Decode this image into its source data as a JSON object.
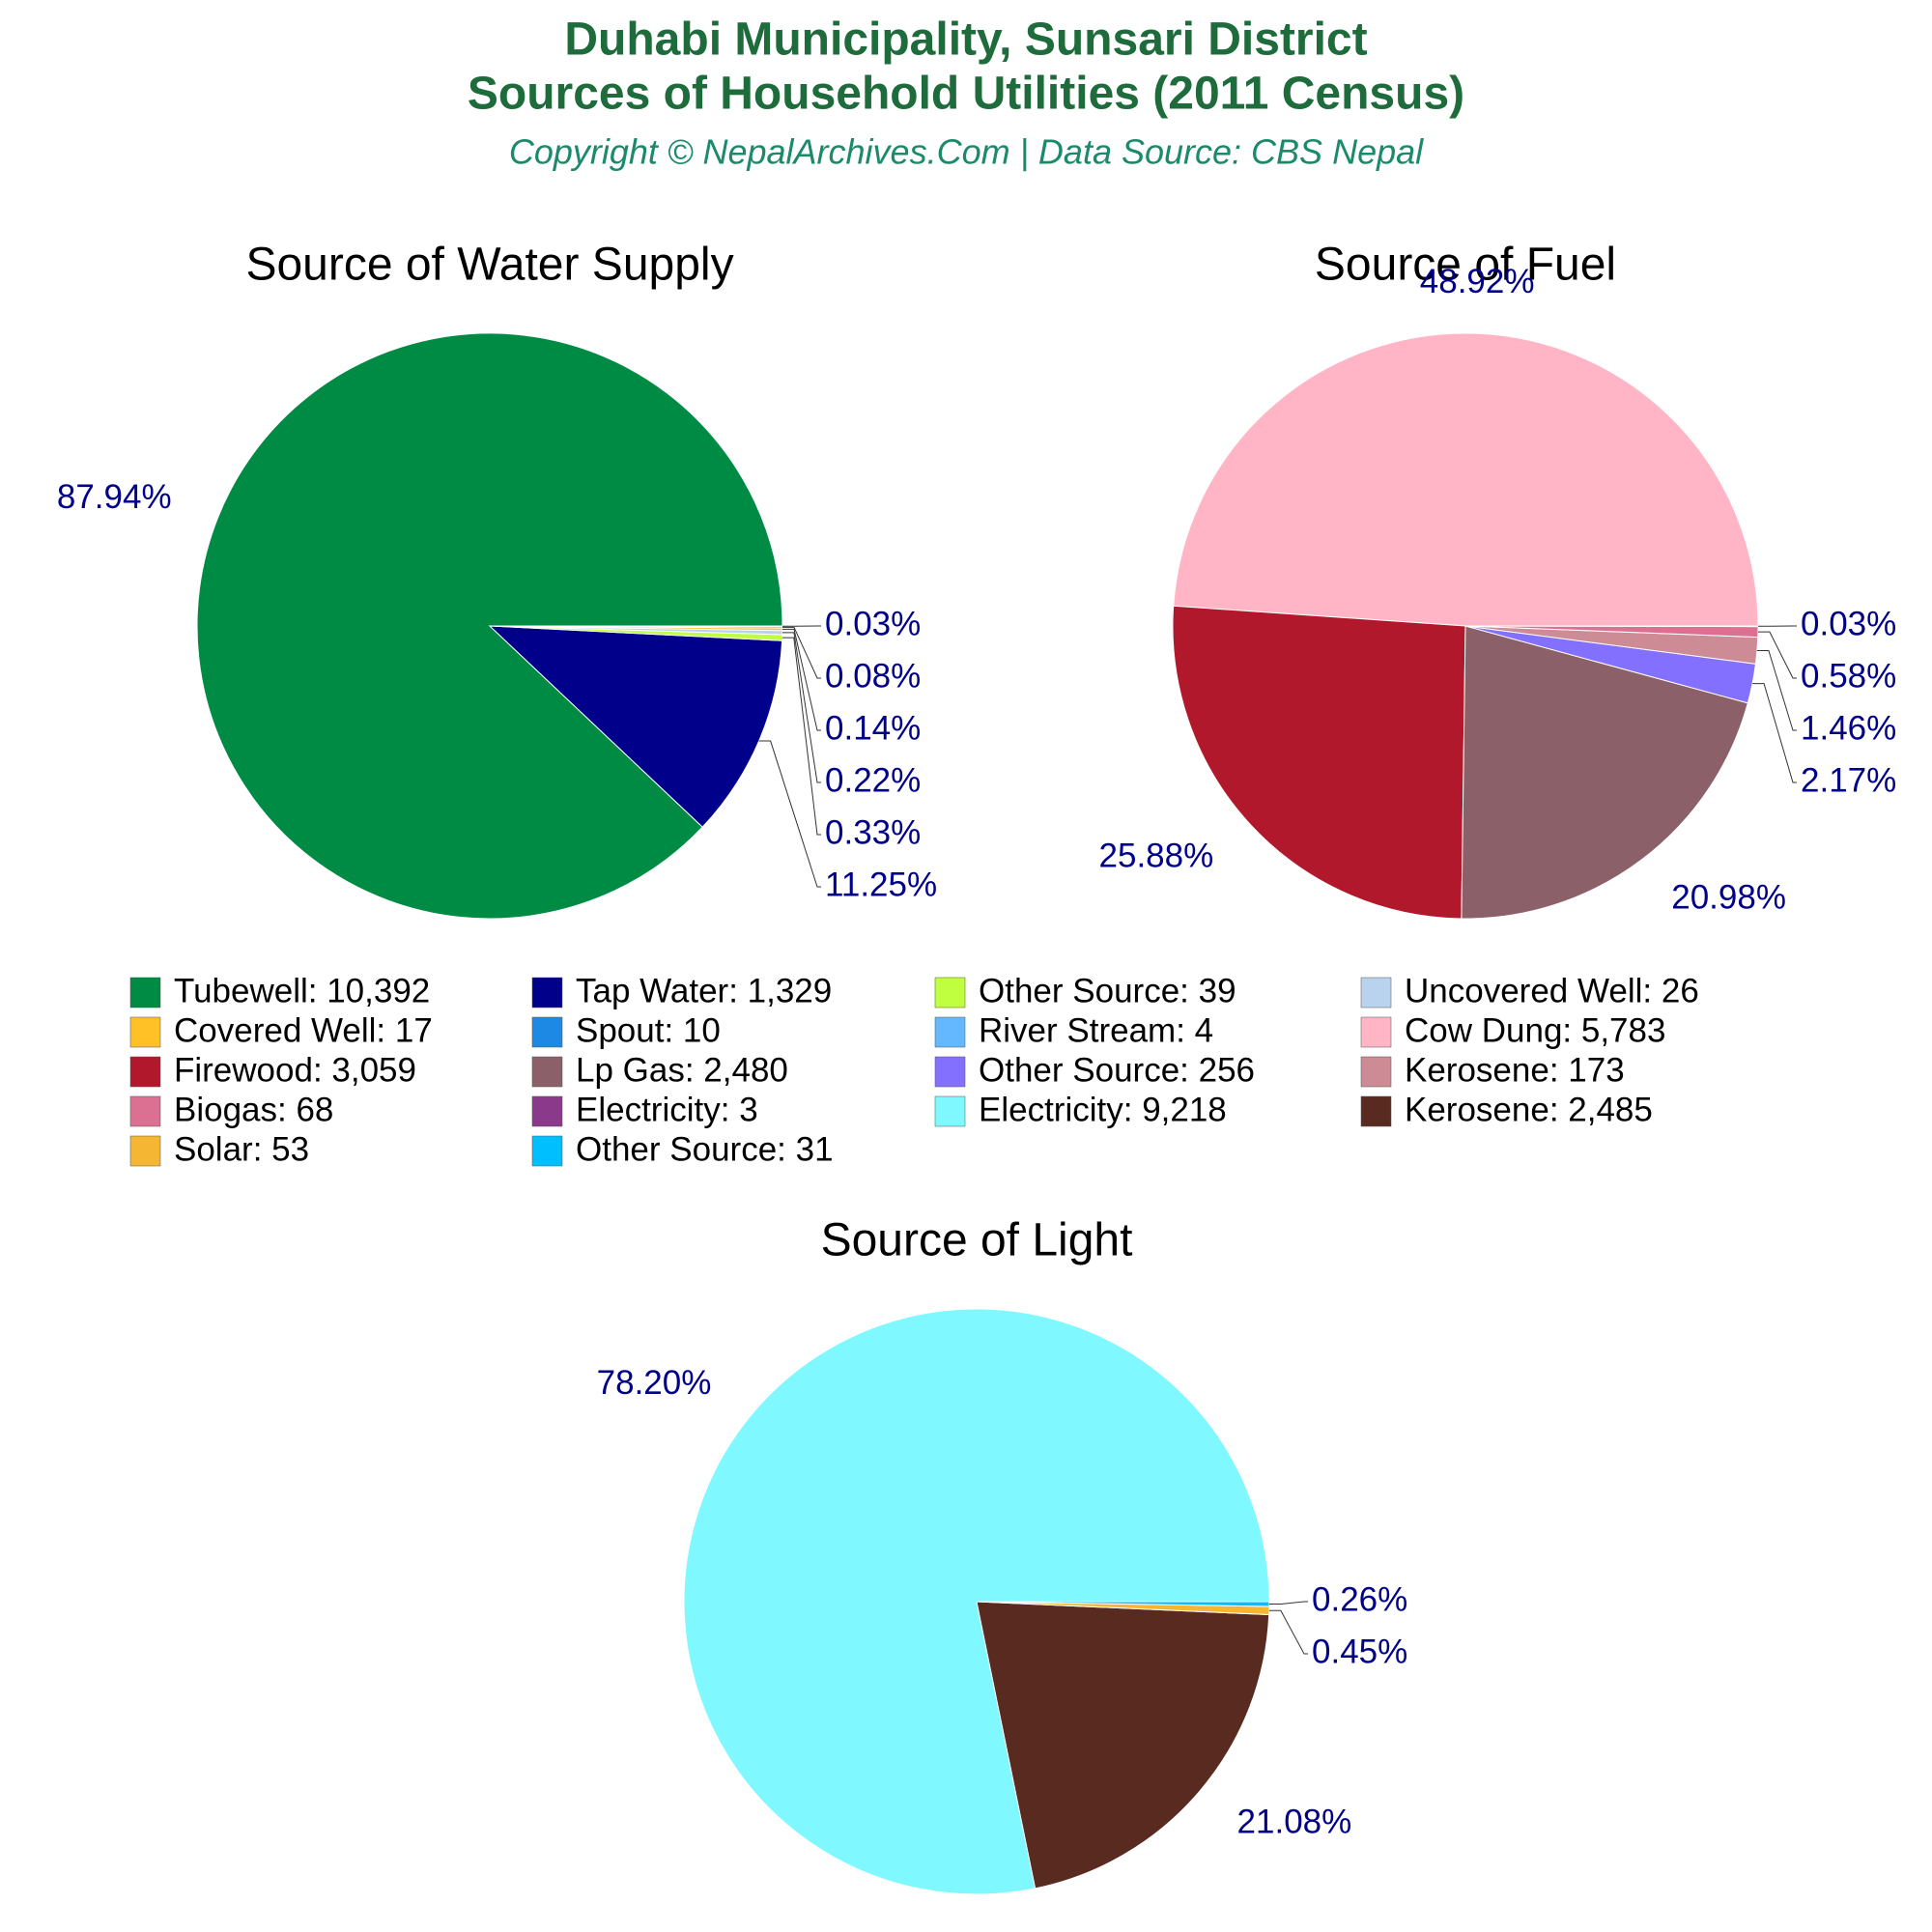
{
  "title_lines": [
    "Duhabi Municipality, Sunsari District",
    "Sources of Household Utilities (2011 Census)"
  ],
  "subtitle": "Copyright © NepalArchives.Com | Data Source: CBS Nepal",
  "chart_data": [
    {
      "type": "pie",
      "title": "Source of Water Supply",
      "categories": [
        "Tubewell: 10,392",
        "Tap Water: 1,329",
        "Other Source: 39",
        "Uncovered Well: 26",
        "Covered Well: 17",
        "Spout: 10",
        "River Stream: 4"
      ],
      "values": [
        87.94,
        11.25,
        0.33,
        0.22,
        0.14,
        0.08,
        0.03
      ],
      "value_labels": [
        "87.94%",
        "11.25%",
        "0.33%",
        "0.22%",
        "0.14%",
        "0.08%",
        "0.03%"
      ],
      "colors": [
        "#008b45",
        "#00008b",
        "#bfff3f",
        "#b9d3ee",
        "#ffc125",
        "#1e88e5",
        "#63b8ff"
      ]
    },
    {
      "type": "pie",
      "title": "Source of Fuel",
      "categories": [
        "Cow Dung: 5,783",
        "Firewood: 3,059",
        "Lp Gas: 2,480",
        "Other Source: 256",
        "Kerosene: 173",
        "Biogas: 68",
        "Electricity: 3"
      ],
      "values": [
        48.92,
        25.88,
        20.98,
        2.17,
        1.46,
        0.58,
        0.03
      ],
      "value_labels": [
        "48.92%",
        "25.88%",
        "20.98%",
        "2.17%",
        "1.46%",
        "0.58%",
        "0.03%"
      ],
      "colors": [
        "#ffb5c5",
        "#b2182b",
        "#8b6068",
        "#8470ff",
        "#cd8c95",
        "#db7093",
        "#8b3a8b"
      ]
    },
    {
      "type": "pie",
      "title": "Source of Light",
      "categories": [
        "Electricity: 9,218",
        "Kerosene: 2,485",
        "Solar: 53",
        "Other Source: 31"
      ],
      "values": [
        78.2,
        21.08,
        0.45,
        0.26
      ],
      "value_labels": [
        "78.20%",
        "21.08%",
        "0.45%",
        "0.26%"
      ],
      "colors": [
        "#7ff9ff",
        "#582a20",
        "#f5b733",
        "#00bfff"
      ]
    }
  ]
}
